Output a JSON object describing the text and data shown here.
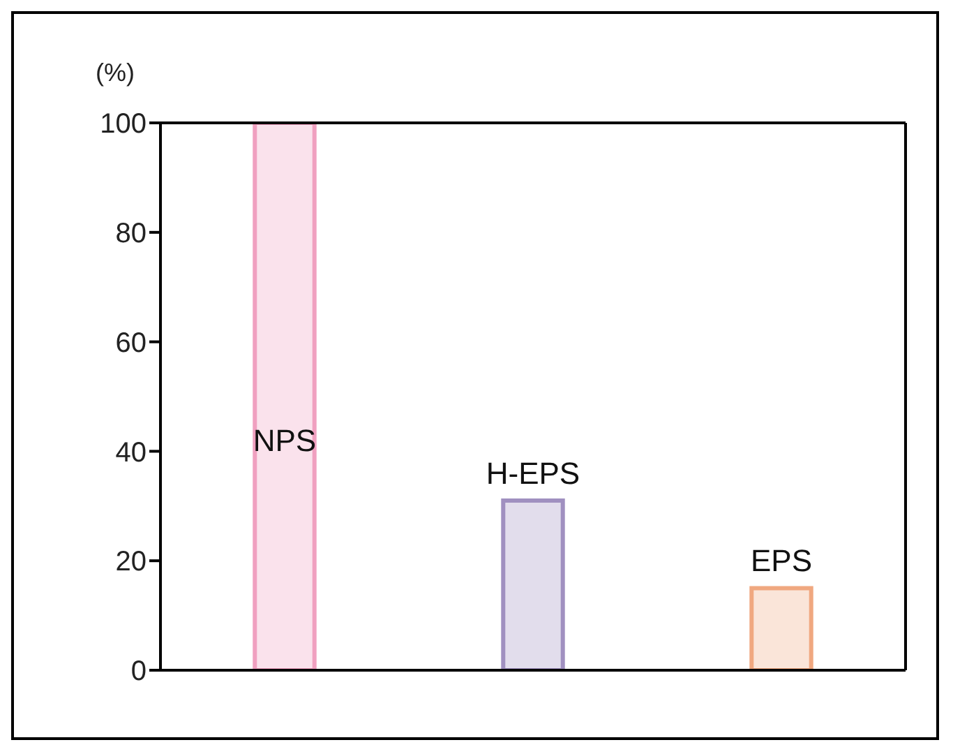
{
  "chart_data": {
    "type": "bar",
    "ylabel": "(%)",
    "categories": [
      "NPS",
      "H-EPS",
      "EPS"
    ],
    "values": [
      100,
      31,
      15
    ],
    "colors": [
      "#f0a0c0",
      "#a090c0",
      "#f0a880"
    ],
    "ylim": [
      0,
      100
    ],
    "yticks": [
      0,
      20,
      40,
      60,
      80,
      100
    ],
    "tick_labels": "y"
  }
}
